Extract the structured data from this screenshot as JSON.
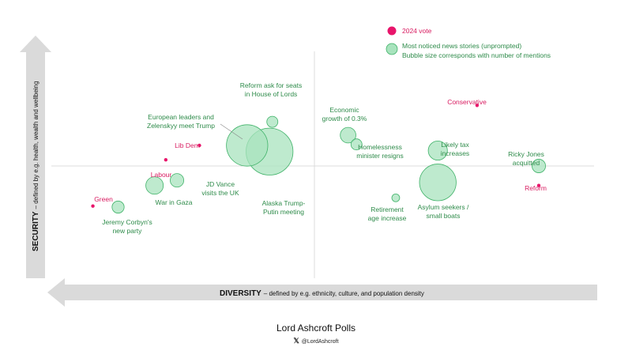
{
  "chart_data": {
    "type": "scatter",
    "title": "",
    "xlabel": "DIVERSITY",
    "xlabel_note": "– defined by e.g. ethnicity, culture, and population density",
    "ylabel": "SECURITY",
    "ylabel_note": "– defined by e.g. health, wealth and wellbeing",
    "xlim": [
      -10,
      10
    ],
    "ylim": [
      -10,
      10
    ],
    "grid": false,
    "legend_position": "top-right",
    "colors": {
      "vote": "#e8156b",
      "story_fill": "#a8e3bd",
      "story_stroke": "#3fb268",
      "vote_text": "#d81b60",
      "story_text": "#2e8b4a"
    },
    "legend": [
      {
        "key": "vote",
        "label": "2024 vote"
      },
      {
        "key": "story",
        "label": "Most noticed news stories (unprompted)",
        "label2": "Bubble size corresponds with number of mentions"
      }
    ],
    "series": [
      {
        "name": "2024 vote",
        "points": [
          {
            "label": "Conservative",
            "x": 5.8,
            "y": 5.9
          },
          {
            "label": "Lib Dem",
            "x": -4.1,
            "y": 2.0
          },
          {
            "label": "Labour",
            "x": -5.3,
            "y": 0.6
          },
          {
            "label": "Green",
            "x": -7.9,
            "y": -3.9
          },
          {
            "label": "Reform",
            "x": 8.0,
            "y": -1.9
          }
        ]
      },
      {
        "name": "Most noticed news stories (unprompted)",
        "points": [
          {
            "label": "Reform ask for seats in House of Lords",
            "x": -1.5,
            "y": 4.3,
            "size": 1
          },
          {
            "label": "European leaders and Zelenskyy meet Trump",
            "x": -2.4,
            "y": 2.0,
            "size": 14
          },
          {
            "label": "Alaska Trump-Putin meeting",
            "x": -1.6,
            "y": 1.4,
            "size": 18
          },
          {
            "label": "Economic growth of 0.3%",
            "x": 1.2,
            "y": 3.0,
            "size": 2
          },
          {
            "label": "Homelessness minister resigns",
            "x": 1.5,
            "y": 2.1,
            "size": 1
          },
          {
            "label": "Likely tax increases",
            "x": 4.4,
            "y": 1.5,
            "size": 3
          },
          {
            "label": "Ricky Jones acquitted",
            "x": 8.0,
            "y": 0.0,
            "size": 1.5
          },
          {
            "label": "Asylum seekers / small boats",
            "x": 4.4,
            "y": -1.6,
            "size": 11
          },
          {
            "label": "Retirement age increase",
            "x": 2.9,
            "y": -3.1,
            "size": 0.5
          },
          {
            "label": "JD Vance visits the UK",
            "x": -4.9,
            "y": -1.4,
            "size": 1.5
          },
          {
            "label": "War in Gaza",
            "x": -5.7,
            "y": -1.9,
            "size": 2.5
          },
          {
            "label": "Jeremy Corbyn's new party",
            "x": -7.0,
            "y": -4.0,
            "size": 1.2
          }
        ]
      }
    ]
  },
  "labels": {
    "Conservative": [
      "Conservative"
    ],
    "Lib Dem": [
      "Lib Dem"
    ],
    "Labour": [
      "Labour"
    ],
    "Green": [
      "Green"
    ],
    "Reform": [
      "Reform"
    ],
    "Reform ask for seats in House of Lords": [
      "Reform ask for seats",
      "in House of Lords"
    ],
    "European leaders and Zelenskyy meet Trump": [
      "European leaders and",
      "Zelenskyy meet Trump"
    ],
    "Alaska Trump-Putin meeting": [
      "Alaska Trump-",
      "Putin meeting"
    ],
    "Economic growth of 0.3%": [
      "Economic",
      "growth of 0.3%"
    ],
    "Homelessness minister resigns": [
      "Homelessness",
      "minister resigns"
    ],
    "Likely tax increases": [
      "Likely tax",
      "increases"
    ],
    "Ricky Jones acquitted": [
      "Ricky Jones",
      "acquitted"
    ],
    "Asylum seekers / small boats": [
      "Asylum seekers /",
      "small boats"
    ],
    "Retirement age increase": [
      "Retirement",
      "age increase"
    ],
    "JD Vance visits the UK": [
      "JD Vance",
      "visits the UK"
    ],
    "War in Gaza": [
      "War in Gaza"
    ],
    "Jeremy Corbyn's new party": [
      "Jeremy Corbyn's",
      "new party"
    ]
  },
  "footer": {
    "title": "Lord Ashcroft Polls",
    "x_icon": "𝕏",
    "handle": "@LordAshcroft"
  }
}
